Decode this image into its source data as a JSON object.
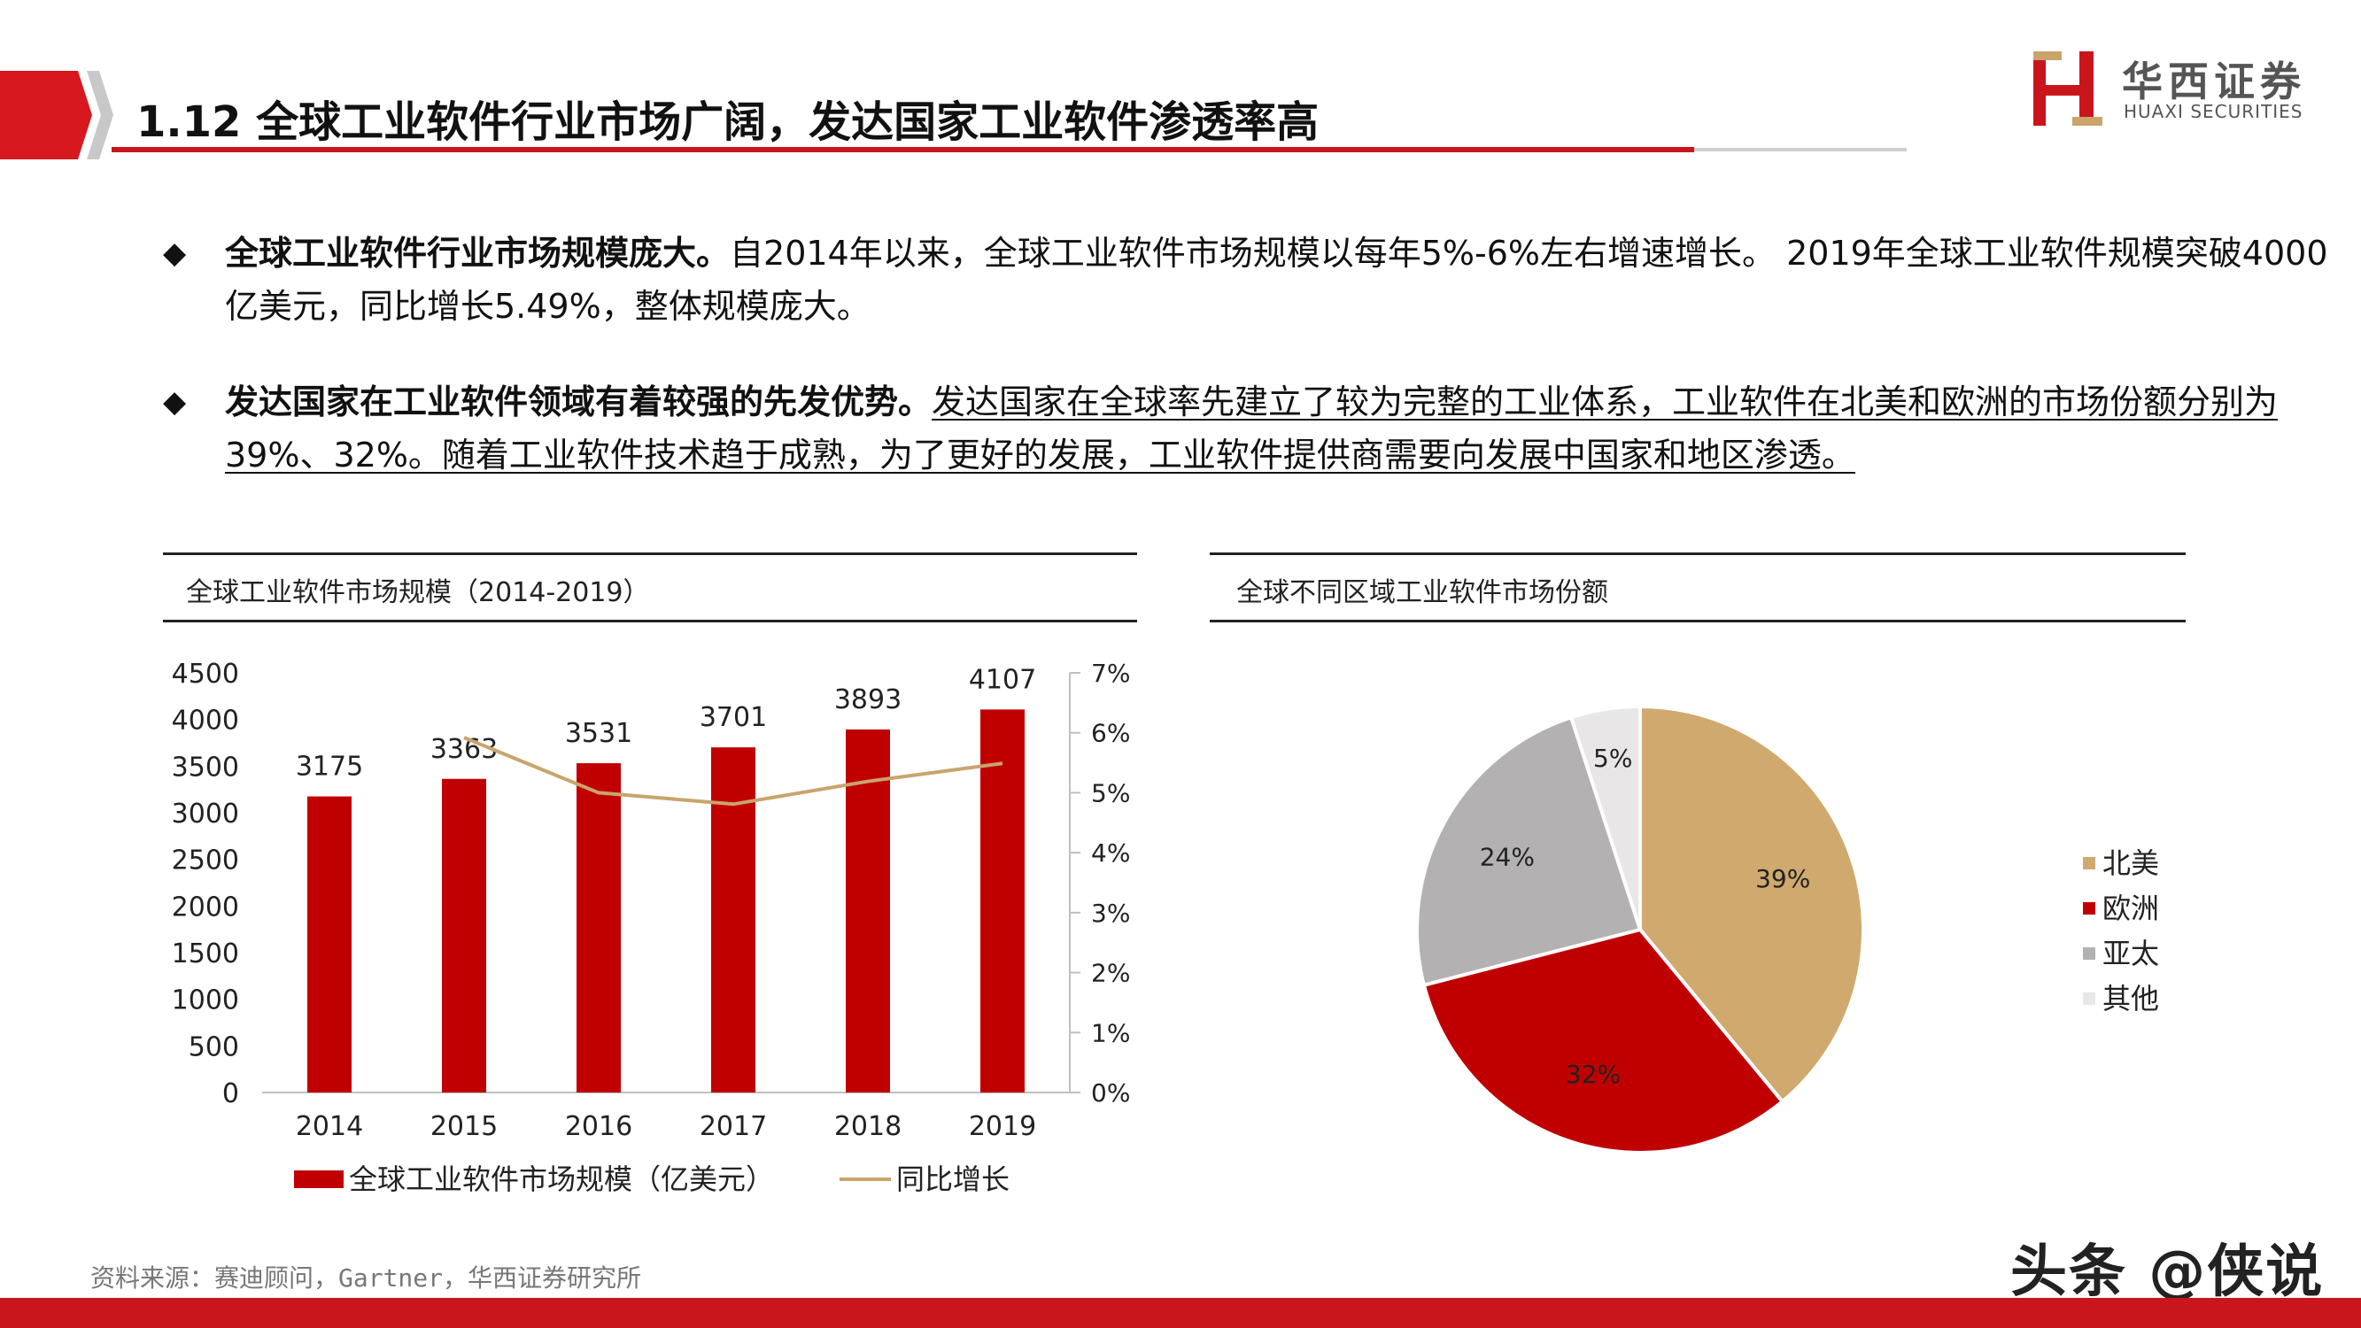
{
  "header": {
    "title": "1.12 全球工业软件行业市场广阔，发达国家工业软件渗透率高",
    "brand_cn": "华西证券",
    "brand_en": "HUAXI SECURITIES"
  },
  "bullets": [
    {
      "bold": "全球工业软件行业市场规模庞大。",
      "normal": "自2014年以来，全球工业软件市场规模以每年5%-6%左右增速增长。 2019年全球工业软件规模突破4000亿美元，同比增长5.49%，整体规模庞大。"
    },
    {
      "bold": "发达国家在工业软件领域有着较强的先发优势。",
      "normal": "发达国家在全球率先建立了较为完整的工业体系，工业软件在北美和欧洲的市场份额分别为39%、32%。随着工业软件技术趋于成熟，为了更好的发展，工业软件提供商需要向发展中国家和地区渗透。"
    }
  ],
  "left_panel": {
    "title": "全球工业软件市场规模（2014-2019）"
  },
  "right_panel": {
    "title": "全球不同区域工业软件市场份额"
  },
  "chart_data": [
    {
      "type": "bar",
      "categories": [
        "2014",
        "2015",
        "2016",
        "2017",
        "2018",
        "2019"
      ],
      "series": [
        {
          "name": "全球工业软件市场规模（亿美元）",
          "values": [
            3175,
            3363,
            3531,
            3701,
            3893,
            4107
          ],
          "color": "#c00000",
          "axis": "left"
        },
        {
          "name": "同比增长",
          "type": "line",
          "values": [
            null,
            5.92,
            5.0,
            4.81,
            5.19,
            5.49
          ],
          "color": "#c9a46c",
          "axis": "right"
        }
      ],
      "ylim": [
        0,
        4500
      ],
      "yticks": [
        0,
        500,
        1000,
        1500,
        2000,
        2500,
        3000,
        3500,
        4000,
        4500
      ],
      "y2lim": [
        0,
        7
      ],
      "y2ticks": [
        "0%",
        "1%",
        "2%",
        "3%",
        "4%",
        "5%",
        "6%",
        "7%"
      ],
      "legend": "bottom"
    },
    {
      "type": "pie",
      "labels": [
        "北美",
        "欧洲",
        "亚太",
        "其他"
      ],
      "values": [
        39,
        32,
        24,
        5
      ],
      "value_labels": [
        "39%",
        "32%",
        "24%",
        "5%"
      ],
      "colors": [
        "#cfa96e",
        "#c00000",
        "#b3b1b2",
        "#e8e6e7"
      ],
      "legend": "right"
    }
  ],
  "footer": {
    "source": "资料来源：赛迪顾问，Gartner，华西证券研究所",
    "watermark": "头条 @侠说"
  }
}
